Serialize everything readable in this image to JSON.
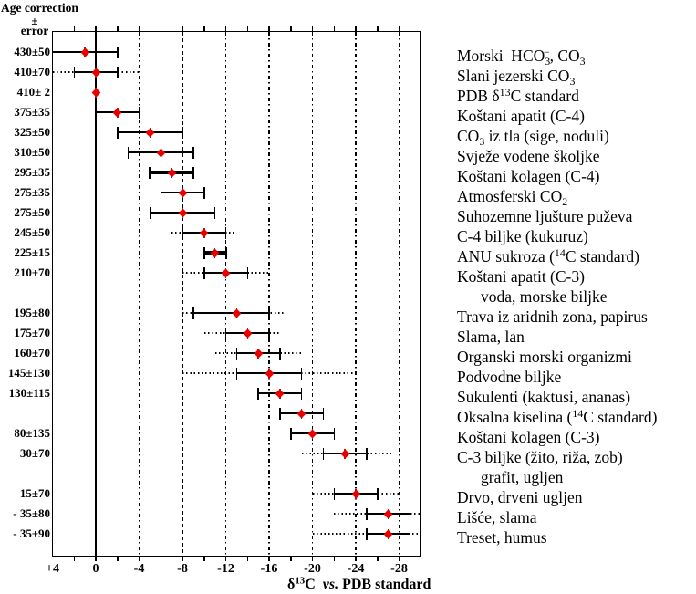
{
  "figure": {
    "header": {
      "line1": "Age correction",
      "line2": "±",
      "line3": "error"
    }
  },
  "chart_data": {
    "type": "scatter",
    "title": "",
    "xlabel": "δ^{13}C vs. PDB standard",
    "ylabel": "Age correction ± error",
    "xlim": [
      4,
      -30
    ],
    "grid": {
      "solid_line_at": 0,
      "bold_dashed_line_at": -8,
      "dash_dot_lines_at": [
        -4,
        -12,
        -16,
        -20,
        -24,
        -28
      ],
      "minor_tick_step": 2
    },
    "x_axis": {
      "tick_labels": [
        "+4",
        "0",
        "-4",
        "-8",
        "-12",
        "-16",
        "-20",
        "-24",
        "-28"
      ],
      "tick_values": [
        4,
        0,
        -4,
        -8,
        -12,
        -16,
        -20,
        -24,
        -28
      ],
      "title_delta": "δ^{13}C",
      "title_vs": "vs.",
      "title_rest": "PDB standard"
    },
    "point_color": "#e60000",
    "line_color": "#000000",
    "rows": [
      {
        "age": "430±50",
        "material": "Morski  HCO_{3}^{−}, CO_{3}",
        "point": 1,
        "solid": [
          4,
          -2
        ],
        "dotted": null,
        "bold": false
      },
      {
        "age": "410±70",
        "material": "Slani jezerski CO_{3}",
        "point": 0,
        "solid": [
          2,
          -2
        ],
        "dotted": [
          4,
          -4
        ],
        "bold": false
      },
      {
        "age": "410± 2",
        "material": "PDB δ^{13}C standard",
        "point": 0,
        "solid": null,
        "dotted": null,
        "bold": false
      },
      {
        "age": "375±35",
        "material": "Koštani apatit (C-4)",
        "point": -2,
        "solid": [
          0,
          -4
        ],
        "dotted": null,
        "bold": false
      },
      {
        "age": "325±50",
        "material": "CO_{3} iz tla (sige, noduli)",
        "point": -5,
        "solid": [
          -2,
          -8
        ],
        "dotted": null,
        "bold": false
      },
      {
        "age": "310±50",
        "material": "Svježe vodene školjke",
        "point": -6,
        "solid": [
          -3,
          -9
        ],
        "dotted": null,
        "bold": false
      },
      {
        "age": "295±35",
        "material": "Koštani kolagen (C-4)",
        "point": -7,
        "solid": [
          -5,
          -9
        ],
        "dotted": null,
        "bold": true
      },
      {
        "age": "275±35",
        "material": "Atmosferski CO_{2}",
        "point": -8,
        "solid": [
          -6,
          -10
        ],
        "dotted": null,
        "bold": false
      },
      {
        "age": "275±50",
        "material": "Suhozemne ljušture puževa",
        "point": -8,
        "solid": [
          -5,
          -11
        ],
        "dotted": null,
        "bold": false
      },
      {
        "age": "245±50",
        "material": "C-4 biljke (kukuruz)",
        "point": -10,
        "solid": [
          -8,
          -12
        ],
        "dotted": [
          -7,
          -13
        ],
        "bold": false
      },
      {
        "age": "225±15",
        "material": "ANU sukroza (^{14}C standard)",
        "point": -11,
        "solid": [
          -10,
          -12
        ],
        "dotted": null,
        "bold": true
      },
      {
        "age": "210±70",
        "material": "Koštani apatit (C-3)",
        "material2": "voda, morske biljke",
        "point": -12,
        "solid": [
          -10,
          -14
        ],
        "dotted": [
          -8,
          -16
        ],
        "bold": false
      },
      {
        "age": "195±80",
        "material": "Trava iz aridnih zona, papirus",
        "point": -13,
        "solid": [
          -9,
          -16
        ],
        "dotted": [
          -8,
          -17.5
        ],
        "bold": false
      },
      {
        "age": "175±70",
        "material": "Slama, lan",
        "point": -14,
        "solid": [
          -12,
          -16
        ],
        "dotted": [
          -10,
          -17
        ],
        "bold": false
      },
      {
        "age": "160±70",
        "material": "Organski morski organizmi",
        "point": -15,
        "solid": [
          -13,
          -17
        ],
        "dotted": [
          -11,
          -19
        ],
        "bold": false
      },
      {
        "age": "145±130",
        "material": "Podvodne biljke",
        "point": -16,
        "solid": [
          -13,
          -19
        ],
        "dotted": [
          -8,
          -24
        ],
        "bold": false
      },
      {
        "age": "130±115",
        "material": "Sukulenti (kaktusi, ananas)",
        "point": -17,
        "solid": [
          -15,
          -19
        ],
        "dotted": null,
        "bold": false
      },
      {
        "age": "",
        "material": "Oksalna kiselina (^{14}C standard)",
        "point": -19,
        "solid": [
          -17,
          -21
        ],
        "dotted": null,
        "bold": false
      },
      {
        "age": "80±135",
        "material": "Koštani kolagen (C-3)",
        "point": -20,
        "solid": [
          -18,
          -22
        ],
        "dotted": null,
        "bold": false
      },
      {
        "age": "30±70",
        "material": "C-3 biljke (žito, riža, zob)",
        "material2": "grafit, ugljen",
        "point": -23,
        "solid": [
          -21,
          -25
        ],
        "dotted": [
          -19,
          -27.5
        ],
        "bold": false
      },
      {
        "age": "15±70",
        "material": "Drvo, drveni ugljen",
        "point": -24,
        "solid": [
          -22,
          -26
        ],
        "dotted": [
          -20,
          -28
        ],
        "bold": false
      },
      {
        "age": "- 35±80",
        "material": "Lišće, slama",
        "point": -27,
        "solid": [
          -25,
          -29
        ],
        "dotted": [
          -22,
          -30
        ],
        "bold": false
      },
      {
        "age": "- 35±90",
        "material": "Treset, humus",
        "point": -27,
        "solid": [
          -25,
          -29
        ],
        "dotted": [
          -20,
          -30
        ],
        "bold": false
      }
    ]
  }
}
